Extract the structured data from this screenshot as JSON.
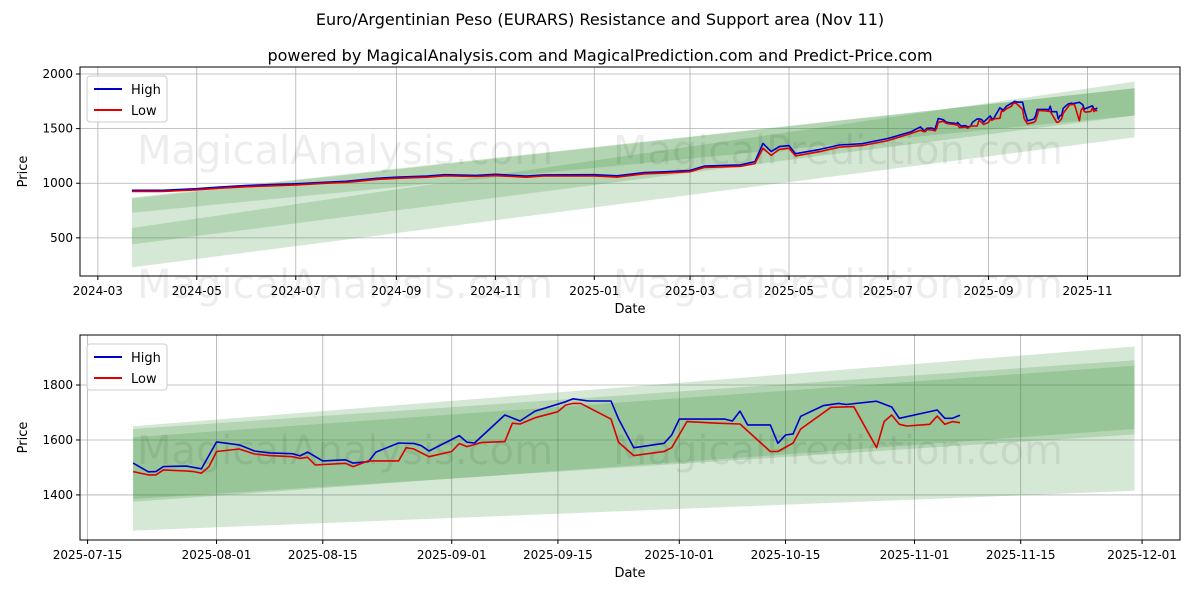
{
  "title": "Euro/Argentinian Peso (EURARS) Resistance and Support area (Nov 11)",
  "subtitle": "powered by MagicalAnalysis.com and MagicalPrediction.com and Predict-Price.com",
  "watermarks": [
    "MagicalAnalysis.com",
    "MagicalPrediction.com"
  ],
  "colors": {
    "high": "#0000cc",
    "low": "#dd0000",
    "band": "#2e8b2e",
    "grid": "#b0b0b0"
  },
  "chart_data": [
    {
      "type": "line",
      "xlabel": "Date",
      "ylabel": "Price",
      "xlim": [
        "2024-02-19",
        "2025-12-28"
      ],
      "ylim": [
        151,
        2064
      ],
      "xticks": [
        "2024-03",
        "2024-05",
        "2024-07",
        "2024-09",
        "2024-11",
        "2025-01",
        "2025-03",
        "2025-05",
        "2025-07",
        "2025-09",
        "2025-11"
      ],
      "yticks": [
        500,
        1000,
        1500,
        2000
      ],
      "grid": true,
      "legend": {
        "position": "top-left",
        "entries": [
          "High",
          "Low"
        ]
      },
      "series_from": "2024-03-22",
      "bands": [
        {
          "start": "2024-03-22",
          "end": "2025-11-30",
          "start_range": [
            230,
            590
          ],
          "end_range": [
            1420,
            1930
          ]
        },
        {
          "start": "2024-03-22",
          "end": "2025-11-30",
          "start_range": [
            440,
            860
          ],
          "end_range": [
            1620,
            1870
          ]
        },
        {
          "start": "2024-03-22",
          "end": "2025-11-30",
          "start_range": [
            730,
            870
          ],
          "end_range": [
            1620,
            1870
          ]
        }
      ]
    },
    {
      "type": "line",
      "xlabel": "Date",
      "ylabel": "Price",
      "xlim": [
        "2025-07-14",
        "2025-12-06"
      ],
      "ylim": [
        1236,
        1982
      ],
      "xticks": [
        "2025-07-15",
        "2025-08-01",
        "2025-08-15",
        "2025-09-01",
        "2025-09-15",
        "2025-10-01",
        "2025-10-15",
        "2025-11-01",
        "2025-11-15",
        "2025-12-01"
      ],
      "yticks": [
        1400,
        1600,
        1800
      ],
      "grid": true,
      "legend": {
        "position": "top-left",
        "entries": [
          "High",
          "Low"
        ]
      },
      "series_from": "2025-07-21",
      "bands": [
        {
          "start": "2025-07-21",
          "end": "2025-11-30",
          "start_range": [
            1270,
            1650
          ],
          "end_range": [
            1415,
            1940
          ]
        },
        {
          "start": "2025-07-21",
          "end": "2025-11-30",
          "start_range": [
            1375,
            1640
          ],
          "end_range": [
            1640,
            1890
          ]
        },
        {
          "start": "2025-07-21",
          "end": "2025-11-30",
          "start_range": [
            1385,
            1610
          ],
          "end_range": [
            1620,
            1870
          ]
        }
      ]
    }
  ],
  "series": {
    "high": [
      [
        "2024-03-22",
        935
      ],
      [
        "2024-04-10",
        935
      ],
      [
        "2024-05-01",
        950
      ],
      [
        "2024-05-15",
        965
      ],
      [
        "2024-06-01",
        980
      ],
      [
        "2024-07-01",
        995
      ],
      [
        "2024-07-20",
        1010
      ],
      [
        "2024-08-01",
        1018
      ],
      [
        "2024-08-20",
        1045
      ],
      [
        "2024-09-01",
        1055
      ],
      [
        "2024-09-20",
        1065
      ],
      [
        "2024-10-01",
        1078
      ],
      [
        "2024-10-20",
        1072
      ],
      [
        "2024-11-01",
        1082
      ],
      [
        "2024-11-20",
        1066
      ],
      [
        "2024-12-01",
        1076
      ],
      [
        "2025-01-01",
        1078
      ],
      [
        "2025-01-15",
        1068
      ],
      [
        "2025-02-01",
        1098
      ],
      [
        "2025-02-15",
        1106
      ],
      [
        "2025-03-01",
        1118
      ],
      [
        "2025-03-10",
        1158
      ],
      [
        "2025-04-01",
        1168
      ],
      [
        "2025-04-10",
        1198
      ],
      [
        "2025-04-15",
        1365
      ],
      [
        "2025-04-20",
        1290
      ],
      [
        "2025-04-25",
        1335
      ],
      [
        "2025-05-01",
        1345
      ],
      [
        "2025-05-05",
        1270
      ],
      [
        "2025-05-20",
        1310
      ],
      [
        "2025-06-01",
        1350
      ],
      [
        "2025-06-15",
        1362
      ],
      [
        "2025-07-01",
        1410
      ],
      [
        "2025-07-15",
        1470
      ],
      [
        "2025-07-21",
        1516
      ],
      [
        "2025-07-23",
        1484
      ],
      [
        "2025-07-24",
        1485
      ],
      [
        "2025-07-25",
        1503
      ],
      [
        "2025-07-28",
        1505
      ],
      [
        "2025-07-30",
        1495
      ],
      [
        "2025-08-01",
        1593
      ],
      [
        "2025-08-04",
        1582
      ],
      [
        "2025-08-06",
        1560
      ],
      [
        "2025-08-08",
        1553
      ],
      [
        "2025-08-11",
        1550
      ],
      [
        "2025-08-12",
        1542
      ],
      [
        "2025-08-13",
        1556
      ],
      [
        "2025-08-15",
        1524
      ],
      [
        "2025-08-18",
        1528
      ],
      [
        "2025-08-19",
        1516
      ],
      [
        "2025-08-21",
        1521
      ],
      [
        "2025-08-22",
        1556
      ],
      [
        "2025-08-25",
        1589
      ],
      [
        "2025-08-27",
        1587
      ],
      [
        "2025-08-28",
        1579
      ],
      [
        "2025-08-29",
        1560
      ],
      [
        "2025-09-02",
        1616
      ],
      [
        "2025-09-03",
        1592
      ],
      [
        "2025-09-04",
        1589
      ],
      [
        "2025-09-08",
        1691
      ],
      [
        "2025-09-10",
        1669
      ],
      [
        "2025-09-12",
        1705
      ],
      [
        "2025-09-16",
        1739
      ],
      [
        "2025-09-17",
        1750
      ],
      [
        "2025-09-19",
        1742
      ],
      [
        "2025-09-22",
        1742
      ],
      [
        "2025-09-23",
        1676
      ],
      [
        "2025-09-25",
        1572
      ],
      [
        "2025-09-29",
        1588
      ],
      [
        "2025-09-30",
        1618
      ],
      [
        "2025-10-01",
        1676
      ],
      [
        "2025-10-07",
        1676
      ],
      [
        "2025-10-08",
        1669
      ],
      [
        "2025-10-09",
        1705
      ],
      [
        "2025-10-10",
        1655
      ],
      [
        "2025-10-13",
        1655
      ],
      [
        "2025-10-14",
        1588
      ],
      [
        "2025-10-15",
        1618
      ],
      [
        "2025-10-16",
        1622
      ],
      [
        "2025-10-17",
        1686
      ],
      [
        "2025-10-20",
        1725
      ],
      [
        "2025-10-22",
        1733
      ],
      [
        "2025-10-23",
        1729
      ],
      [
        "2025-10-27",
        1741
      ],
      [
        "2025-10-29",
        1720
      ],
      [
        "2025-10-30",
        1679
      ],
      [
        "2025-11-04",
        1709
      ],
      [
        "2025-11-05",
        1679
      ],
      [
        "2025-11-06",
        1679
      ],
      [
        "2025-11-07",
        1690
      ]
    ],
    "low": [
      [
        "2024-03-22",
        925
      ],
      [
        "2024-04-10",
        925
      ],
      [
        "2024-05-01",
        940
      ],
      [
        "2024-05-15",
        955
      ],
      [
        "2024-06-01",
        968
      ],
      [
        "2024-07-01",
        985
      ],
      [
        "2024-07-20",
        1000
      ],
      [
        "2024-08-01",
        1008
      ],
      [
        "2024-08-20",
        1035
      ],
      [
        "2024-09-01",
        1045
      ],
      [
        "2024-09-20",
        1055
      ],
      [
        "2024-10-01",
        1068
      ],
      [
        "2024-10-20",
        1062
      ],
      [
        "2024-11-01",
        1070
      ],
      [
        "2024-11-20",
        1055
      ],
      [
        "2024-12-01",
        1066
      ],
      [
        "2025-01-01",
        1066
      ],
      [
        "2025-01-15",
        1056
      ],
      [
        "2025-02-01",
        1086
      ],
      [
        "2025-02-15",
        1095
      ],
      [
        "2025-03-01",
        1106
      ],
      [
        "2025-03-10",
        1145
      ],
      [
        "2025-04-01",
        1155
      ],
      [
        "2025-04-10",
        1180
      ],
      [
        "2025-04-15",
        1320
      ],
      [
        "2025-04-20",
        1255
      ],
      [
        "2025-04-25",
        1310
      ],
      [
        "2025-05-01",
        1320
      ],
      [
        "2025-05-05",
        1250
      ],
      [
        "2025-05-20",
        1290
      ],
      [
        "2025-06-01",
        1330
      ],
      [
        "2025-06-15",
        1345
      ],
      [
        "2025-07-01",
        1390
      ],
      [
        "2025-07-15",
        1455
      ],
      [
        "2025-07-21",
        1485
      ],
      [
        "2025-07-23",
        1473
      ],
      [
        "2025-07-24",
        1473
      ],
      [
        "2025-07-25",
        1491
      ],
      [
        "2025-07-28",
        1487
      ],
      [
        "2025-07-29",
        1485
      ],
      [
        "2025-07-30",
        1479
      ],
      [
        "2025-07-31",
        1503
      ],
      [
        "2025-08-01",
        1558
      ],
      [
        "2025-08-04",
        1567
      ],
      [
        "2025-08-06",
        1549
      ],
      [
        "2025-08-08",
        1543
      ],
      [
        "2025-08-11",
        1539
      ],
      [
        "2025-08-12",
        1533
      ],
      [
        "2025-08-13",
        1537
      ],
      [
        "2025-08-14",
        1509
      ],
      [
        "2025-08-18",
        1515
      ],
      [
        "2025-08-19",
        1503
      ],
      [
        "2025-08-21",
        1524
      ],
      [
        "2025-08-25",
        1524
      ],
      [
        "2025-08-26",
        1572
      ],
      [
        "2025-08-27",
        1567
      ],
      [
        "2025-08-29",
        1539
      ],
      [
        "2025-09-01",
        1558
      ],
      [
        "2025-09-02",
        1587
      ],
      [
        "2025-09-03",
        1576
      ],
      [
        "2025-09-05",
        1591
      ],
      [
        "2025-09-08",
        1594
      ],
      [
        "2025-09-09",
        1661
      ],
      [
        "2025-09-10",
        1658
      ],
      [
        "2025-09-12",
        1681
      ],
      [
        "2025-09-15",
        1703
      ],
      [
        "2025-09-16",
        1727
      ],
      [
        "2025-09-17",
        1733
      ],
      [
        "2025-09-18",
        1733
      ],
      [
        "2025-09-22",
        1676
      ],
      [
        "2025-09-23",
        1591
      ],
      [
        "2025-09-25",
        1543
      ],
      [
        "2025-09-29",
        1558
      ],
      [
        "2025-09-30",
        1572
      ],
      [
        "2025-10-02",
        1667
      ],
      [
        "2025-10-06",
        1661
      ],
      [
        "2025-10-09",
        1658
      ],
      [
        "2025-10-13",
        1558
      ],
      [
        "2025-10-14",
        1558
      ],
      [
        "2025-10-16",
        1589
      ],
      [
        "2025-10-17",
        1640
      ],
      [
        "2025-10-21",
        1719
      ],
      [
        "2025-10-24",
        1721
      ],
      [
        "2025-10-27",
        1572
      ],
      [
        "2025-10-28",
        1667
      ],
      [
        "2025-10-29",
        1691
      ],
      [
        "2025-10-30",
        1657
      ],
      [
        "2025-10-31",
        1651
      ],
      [
        "2025-11-03",
        1657
      ],
      [
        "2025-11-04",
        1687
      ],
      [
        "2025-11-05",
        1657
      ],
      [
        "2025-11-06",
        1667
      ],
      [
        "2025-11-07",
        1663
      ]
    ]
  }
}
